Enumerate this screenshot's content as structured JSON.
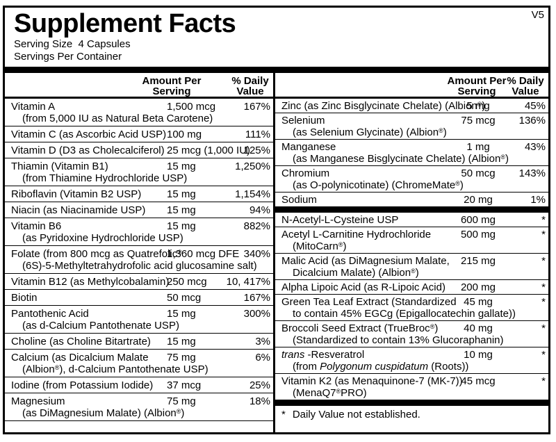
{
  "title": "Supplement Facts",
  "version": "V5",
  "serving_size": "Serving Size  4 Capsules",
  "servings_per_container": "Servings Per Container",
  "headers": {
    "amount_line1": "Amount Per",
    "amount_line2": "Serving",
    "dv_line1": "% Daily",
    "dv_line2": "Value"
  },
  "colors": {
    "ink": "#000000",
    "paper": "#ffffff"
  },
  "left": {
    "rows": [
      {
        "name": "Vitamin A",
        "sub": "(from 5,000 IU as Natural Beta Carotene)",
        "amount": "1,500 mcg",
        "dv": "167%"
      },
      {
        "name": "Vitamin C (as Ascorbic Acid USP)",
        "amount": "100 mg",
        "dv": "111%"
      },
      {
        "name": "Vitamin D (D3 as Cholecalciferol)",
        "amount": "25 mcg (1,000 IU)",
        "dv": "125%"
      },
      {
        "name": "Thiamin (Vitamin B1)",
        "sub": "(from Thiamine Hydrochloride USP)",
        "amount": "15 mg",
        "dv": "1,250%"
      },
      {
        "name": "Riboflavin (Vitamin B2 USP)",
        "amount": "15 mg",
        "dv": "1,154%"
      },
      {
        "name": "Niacin (as Niacinamide USP)",
        "amount": "15 mg",
        "dv": "94%"
      },
      {
        "name": "Vitamin B6",
        "sub": "(as Pyridoxine Hydrochloride USP)",
        "amount": "15 mg",
        "dv": "882%"
      },
      {
        "name": "Folate (from 800 mcg as Quatrefolic®",
        "sub": "(6S)-5-Methyltetrahydrofolic acid glucosamine salt)",
        "amount": "1,360 mcg DFE",
        "dv": "340%"
      },
      {
        "name": "Vitamin B12 (as Methylcobalamin)",
        "amount": "250 mcg",
        "dv": "10, 417%"
      },
      {
        "name": "Biotin",
        "amount": "50 mcg",
        "dv": "167%"
      },
      {
        "name": "Pantothenic Acid",
        "sub": "(as d-Calcium Pantothenate USP)",
        "amount": "15 mg",
        "dv": "300%"
      },
      {
        "name": "Choline (as Choline Bitartrate)",
        "amount": "15 mg",
        "dv": "3%"
      },
      {
        "name": "Calcium (as Dicalcium Malate",
        "sub": "(Albion®), d-Calcium Pantothenate USP)",
        "amount": "75 mg",
        "dv": "6%"
      },
      {
        "name": "Iodine (from Potassium Iodide)",
        "amount": "37 mcg",
        "dv": "25%"
      },
      {
        "name": "Magnesium",
        "sub": "(as DiMagnesium Malate) (Albion®)",
        "amount": "75 mg",
        "dv": "18%"
      }
    ]
  },
  "right": {
    "rows_minerals": [
      {
        "name": "Zinc (as Zinc Bisglycinate Chelate) (Albion®)",
        "amount": "5 mg",
        "dv": "45%"
      },
      {
        "name": "Selenium",
        "sub": "(as Selenium Glycinate) (Albion®)",
        "amount": "75 mcg",
        "dv": "136%"
      },
      {
        "name": "Manganese",
        "sub": "(as Manganese Bisglycinate Chelate) (Albion®)",
        "amount": "1 mg",
        "dv": "43%"
      },
      {
        "name": "Chromium",
        "sub": "(as O-polynicotinate) (ChromeMate®)",
        "amount": "50 mcg",
        "dv": "143%"
      },
      {
        "name": "Sodium",
        "amount": "20 mg",
        "dv": "1%"
      }
    ],
    "rows_other": [
      {
        "name": "N-Acetyl-L-Cysteine USP",
        "amount": "600 mg",
        "dv": "*"
      },
      {
        "name": "Acetyl L-Carnitine Hydrochloride",
        "sub": "(MitoCarn®)",
        "amount": "500 mg",
        "dv": "*"
      },
      {
        "name": "Malic Acid (as DiMagnesium Malate,",
        "sub": "Dicalcium Malate) (Albion®)",
        "amount": "215 mg",
        "dv": "*"
      },
      {
        "name": "Alpha Lipoic Acid (as R-Lipoic Acid)",
        "amount": "200 mg",
        "dv": "*"
      },
      {
        "name": "Green Tea Leaf Extract (Standardized",
        "sub": "to contain 45% EGCg (Epigallocatechin gallate))",
        "amount": "45 mg",
        "dv": "*"
      },
      {
        "name": "Broccoli Seed Extract (TrueBroc®)",
        "sub": "(Standardized to contain 13% Glucoraphanin)",
        "amount": "40 mg",
        "dv": "*"
      },
      {
        "name_italic": "trans",
        "name_rest": " -Resveratrol",
        "sub_pre": "(from ",
        "sub_italic": "Polygonum cuspidatum",
        "sub_post": " (Roots))",
        "amount": "10 mg",
        "dv": "*"
      },
      {
        "name": "Vitamin K2 (as Menaquinone-7 (MK-7))",
        "sub": "(MenaQ7®PRO)",
        "amount": "45 mcg",
        "dv": "*"
      }
    ],
    "footnote_star": "*",
    "footnote_text": "Daily Value not established."
  }
}
